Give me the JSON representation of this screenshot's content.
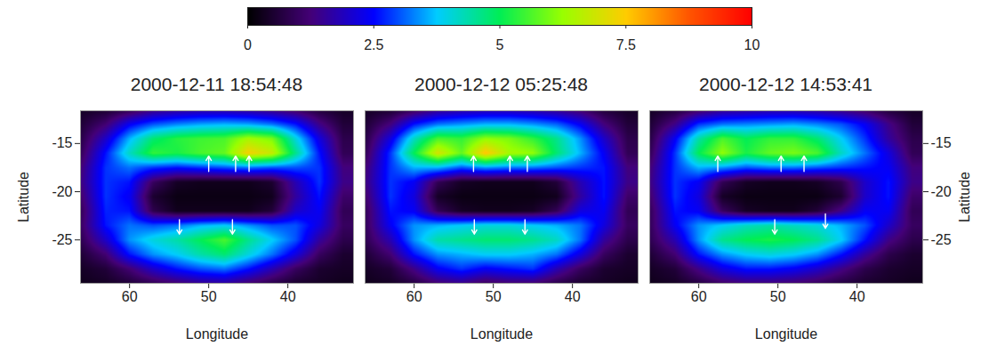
{
  "chart_data": {
    "type": "heatmap",
    "xlabel": "Longitude",
    "xlim": [
      66.2,
      31.7
    ],
    "ylim": [
      -29.5,
      -11.6
    ],
    "xticks": [
      60,
      50,
      40
    ],
    "yticks": [
      -15,
      -20,
      -25
    ],
    "colorbar": {
      "range": [
        0,
        10
      ],
      "ticks": [
        0,
        2.5,
        5,
        7.5,
        10
      ],
      "colors": [
        "#000000",
        "#440077",
        "#0000ff",
        "#00ccff",
        "#00ee55",
        "#99ff00",
        "#ffcc00",
        "#ff5500",
        "#ff0000"
      ]
    },
    "x": [
      66,
      63,
      60,
      57,
      54,
      51,
      48,
      45,
      42,
      39,
      36,
      33
    ],
    "y": [
      -11.5,
      -13,
      -14.5,
      -16,
      -17.5,
      -19,
      -20.5,
      -22,
      -23.5,
      -25,
      -26.5,
      -28,
      -29.5
    ],
    "panels": [
      {
        "title": "2000-12-11 18:54:48",
        "ylabel": "Latitude",
        "cells": [
          [
            0.4,
            0.5,
            0.8,
            1.3,
            1.5,
            1.6,
            1.6,
            1.5,
            1.3,
            1.0,
            0.6,
            0.4
          ],
          [
            0.6,
            1.2,
            2.4,
            3.0,
            3.3,
            3.5,
            3.6,
            3.5,
            3.2,
            2.6,
            1.4,
            0.6
          ],
          [
            0.8,
            2.0,
            3.6,
            4.8,
            5.3,
            5.5,
            5.6,
            6.4,
            6.0,
            4.0,
            2.2,
            0.8
          ],
          [
            1.0,
            2.6,
            4.2,
            5.4,
            5.2,
            5.6,
            5.8,
            7.4,
            6.8,
            4.6,
            2.6,
            0.9
          ],
          [
            1.3,
            2.8,
            3.2,
            2.8,
            2.6,
            2.8,
            3.0,
            3.2,
            3.0,
            3.0,
            2.8,
            1.3
          ],
          [
            1.4,
            2.8,
            2.6,
            1.0,
            0.4,
            0.3,
            0.3,
            0.3,
            0.5,
            1.8,
            2.8,
            1.4
          ],
          [
            1.2,
            2.8,
            2.4,
            0.5,
            0.2,
            0.2,
            0.2,
            0.2,
            0.3,
            1.6,
            2.6,
            1.1
          ],
          [
            1.0,
            2.7,
            2.6,
            0.8,
            0.3,
            0.3,
            0.3,
            0.3,
            0.6,
            2.0,
            2.4,
            0.9
          ],
          [
            1.1,
            2.6,
            3.2,
            3.0,
            3.2,
            3.6,
            3.8,
            3.4,
            3.0,
            3.0,
            2.2,
            1.0
          ],
          [
            0.9,
            2.0,
            3.4,
            4.0,
            4.4,
            5.0,
            5.6,
            4.6,
            3.8,
            3.0,
            1.6,
            0.8
          ],
          [
            0.6,
            1.2,
            2.6,
            3.4,
            3.8,
            4.4,
            4.8,
            4.0,
            3.2,
            2.2,
            1.0,
            0.5
          ],
          [
            0.4,
            0.6,
            1.2,
            2.0,
            2.6,
            3.0,
            3.2,
            2.6,
            1.8,
            1.0,
            0.5,
            0.4
          ],
          [
            0.3,
            0.4,
            0.6,
            0.9,
            1.2,
            1.5,
            1.6,
            1.2,
            0.8,
            0.5,
            0.4,
            0.3
          ]
        ],
        "arrows": [
          {
            "x": 50.0,
            "y1": -17.9,
            "y2": -16.3
          },
          {
            "x": 46.6,
            "y1": -17.9,
            "y2": -16.3
          },
          {
            "x": 44.9,
            "y1": -17.9,
            "y2": -16.3
          },
          {
            "x": 53.7,
            "y1": -22.9,
            "y2": -24.4
          },
          {
            "x": 47.0,
            "y1": -22.9,
            "y2": -24.4
          }
        ]
      },
      {
        "title": "2000-12-12 05:25:48",
        "tick_labels": "x",
        "cells": [
          [
            0.4,
            0.5,
            0.9,
            1.4,
            1.6,
            1.7,
            1.7,
            1.6,
            1.4,
            1.1,
            0.6,
            0.4
          ],
          [
            0.6,
            1.3,
            2.6,
            3.2,
            3.4,
            3.6,
            3.6,
            3.4,
            3.1,
            2.4,
            1.3,
            0.6
          ],
          [
            0.8,
            2.2,
            4.2,
            5.6,
            5.4,
            6.2,
            6.0,
            5.4,
            4.6,
            3.4,
            2.0,
            0.8
          ],
          [
            1.0,
            2.8,
            5.0,
            7.0,
            5.8,
            7.6,
            6.4,
            6.2,
            4.8,
            3.6,
            2.4,
            0.9
          ],
          [
            1.3,
            2.8,
            3.6,
            3.6,
            3.0,
            3.4,
            3.2,
            3.2,
            3.0,
            2.8,
            2.6,
            1.3
          ],
          [
            1.4,
            2.8,
            2.4,
            0.9,
            0.4,
            0.3,
            0.3,
            0.3,
            0.6,
            1.8,
            2.6,
            1.4
          ],
          [
            1.2,
            2.8,
            2.2,
            0.4,
            0.2,
            0.2,
            0.2,
            0.2,
            0.3,
            1.6,
            2.6,
            1.1
          ],
          [
            1.0,
            2.6,
            2.4,
            0.9,
            0.4,
            0.3,
            0.3,
            0.4,
            0.9,
            2.2,
            2.4,
            0.9
          ],
          [
            1.0,
            2.4,
            3.4,
            3.6,
            3.8,
            4.0,
            4.0,
            3.8,
            3.6,
            3.2,
            2.2,
            1.0
          ],
          [
            0.9,
            1.8,
            3.4,
            4.4,
            4.6,
            4.8,
            4.8,
            4.6,
            4.2,
            3.2,
            1.6,
            0.8
          ],
          [
            0.6,
            1.2,
            2.6,
            3.4,
            3.6,
            3.8,
            3.8,
            3.6,
            3.2,
            2.2,
            1.0,
            0.5
          ],
          [
            0.4,
            0.6,
            1.4,
            2.4,
            2.8,
            2.4,
            2.6,
            2.8,
            1.8,
            1.0,
            0.5,
            0.4
          ],
          [
            0.3,
            0.4,
            0.7,
            1.2,
            1.4,
            1.0,
            1.2,
            1.2,
            0.8,
            0.5,
            0.4,
            0.3
          ]
        ],
        "arrows": [
          {
            "x": 52.5,
            "y1": -17.9,
            "y2": -16.3
          },
          {
            "x": 47.9,
            "y1": -17.9,
            "y2": -16.3
          },
          {
            "x": 45.7,
            "y1": -17.9,
            "y2": -16.3
          },
          {
            "x": 52.4,
            "y1": -22.9,
            "y2": -24.4
          },
          {
            "x": 46.0,
            "y1": -22.9,
            "y2": -24.4
          }
        ]
      },
      {
        "title": "2000-12-12 14:53:41",
        "ylabel": "Latitude",
        "cells": [
          [
            0.4,
            0.6,
            1.0,
            1.4,
            1.5,
            1.6,
            1.6,
            1.5,
            1.3,
            1.0,
            0.6,
            0.4
          ],
          [
            0.6,
            1.4,
            2.8,
            3.2,
            3.3,
            3.4,
            3.5,
            3.3,
            3.0,
            2.4,
            1.4,
            0.6
          ],
          [
            0.8,
            2.4,
            4.4,
            5.6,
            5.0,
            5.4,
            5.4,
            4.8,
            3.8,
            2.8,
            1.6,
            0.8
          ],
          [
            1.0,
            2.8,
            5.0,
            6.2,
            5.2,
            5.8,
            6.0,
            5.6,
            4.2,
            3.2,
            2.2,
            0.9
          ],
          [
            1.3,
            2.8,
            3.6,
            3.4,
            3.0,
            3.2,
            3.2,
            3.0,
            2.8,
            2.6,
            2.4,
            1.3
          ],
          [
            1.4,
            2.8,
            2.4,
            0.9,
            0.4,
            0.3,
            0.3,
            0.4,
            0.8,
            2.0,
            2.6,
            1.4
          ],
          [
            1.2,
            2.8,
            2.2,
            0.4,
            0.2,
            0.2,
            0.2,
            0.2,
            0.5,
            2.0,
            2.6,
            1.1
          ],
          [
            1.0,
            2.6,
            2.4,
            1.0,
            0.4,
            0.3,
            0.3,
            0.6,
            1.4,
            2.4,
            2.4,
            0.9
          ],
          [
            1.0,
            2.4,
            3.4,
            3.8,
            4.2,
            4.4,
            4.2,
            4.0,
            3.6,
            3.0,
            2.0,
            1.0
          ],
          [
            0.9,
            1.8,
            3.4,
            4.6,
            5.0,
            5.2,
            5.0,
            4.6,
            3.8,
            2.6,
            1.4,
            0.8
          ],
          [
            0.6,
            1.2,
            2.6,
            3.4,
            3.8,
            4.0,
            3.8,
            3.4,
            2.6,
            1.6,
            0.8,
            0.5
          ],
          [
            0.4,
            0.6,
            1.4,
            2.2,
            2.6,
            2.6,
            2.4,
            2.0,
            1.4,
            0.8,
            0.5,
            0.4
          ],
          [
            0.3,
            0.4,
            0.7,
            1.1,
            1.3,
            1.3,
            1.2,
            1.0,
            0.7,
            0.5,
            0.4,
            0.3
          ]
        ],
        "arrows": [
          {
            "x": 57.6,
            "y1": -17.9,
            "y2": -16.3
          },
          {
            "x": 49.6,
            "y1": -17.9,
            "y2": -16.3
          },
          {
            "x": 46.7,
            "y1": -17.9,
            "y2": -16.3
          },
          {
            "x": 50.4,
            "y1": -22.9,
            "y2": -24.4
          },
          {
            "x": 44.0,
            "y1": -22.3,
            "y2": -23.8
          }
        ]
      }
    ]
  }
}
